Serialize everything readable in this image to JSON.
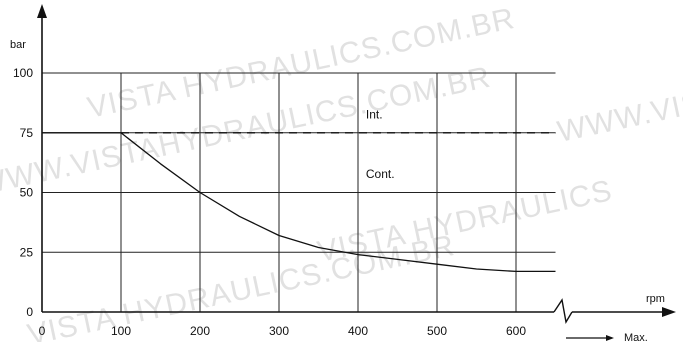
{
  "chart_data": {
    "type": "line",
    "title": "",
    "ylabel": "bar",
    "xlabel": "rpm",
    "x_end_label": "Max.",
    "ylim": [
      0,
      100
    ],
    "xlim": [
      0,
      650
    ],
    "y_ticks": [
      0,
      25,
      50,
      75,
      100
    ],
    "x_ticks": [
      0,
      100,
      200,
      300,
      400,
      500,
      600
    ],
    "grid": true,
    "series": [
      {
        "style": "dashed",
        "x": [
          100,
          650
        ],
        "y": [
          75,
          75
        ]
      },
      {
        "style": "solid",
        "x": [
          0,
          100,
          150,
          200,
          250,
          300,
          350,
          400,
          450,
          500,
          550,
          600,
          650
        ],
        "y": [
          75,
          75,
          62,
          50,
          40,
          32,
          27,
          24,
          22,
          20,
          18,
          17,
          17
        ]
      }
    ],
    "annotations": [
      {
        "text": "Int.",
        "x": 410,
        "y": 81
      },
      {
        "text": "Cont.",
        "x": 410,
        "y": 56
      }
    ],
    "axis_break": "zigzag on x-axis near 600–650"
  },
  "watermarks": [
    "VISTA HYDRAULICS.COM.BR",
    "WWW.VISTAHYDRAULICS.COM.BR",
    "VISTA HYDRAULICS",
    "WWW.VISTA"
  ]
}
